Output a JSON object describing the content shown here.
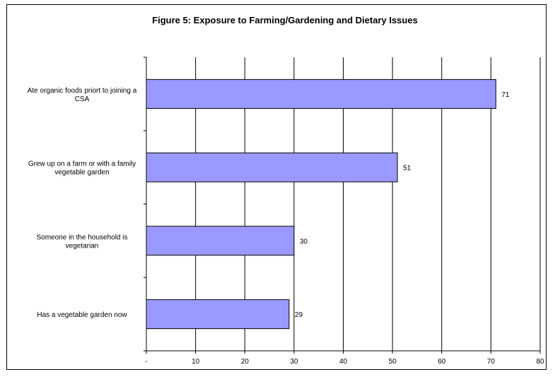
{
  "chart_data": {
    "type": "bar",
    "orientation": "horizontal",
    "title": "Figure 5: Exposure to Farming/Gardening and Dietary Issues",
    "xlabel": "",
    "ylabel": "",
    "categories": [
      [
        "Ate organic foods priort to joining a",
        "CSA"
      ],
      [
        "Grew up on a farm or with a family",
        "vegetable garden"
      ],
      [
        "Someone in the household is",
        "vegetarian"
      ],
      [
        "Has a vegetable garden now"
      ]
    ],
    "values": [
      71,
      51,
      30,
      29
    ],
    "xlim": [
      0,
      80
    ],
    "xticks": [
      {
        "value": 0,
        "label": "-"
      },
      {
        "value": 10,
        "label": "10"
      },
      {
        "value": 20,
        "label": "20"
      },
      {
        "value": 30,
        "label": "30"
      },
      {
        "value": 40,
        "label": "40"
      },
      {
        "value": 50,
        "label": "50"
      },
      {
        "value": 60,
        "label": "60"
      },
      {
        "value": 70,
        "label": "70"
      },
      {
        "value": 80,
        "label": "80"
      }
    ],
    "grid": "vertical",
    "legend": "none",
    "bar_color": "#9999ff",
    "bar_stroke": "#000000"
  }
}
